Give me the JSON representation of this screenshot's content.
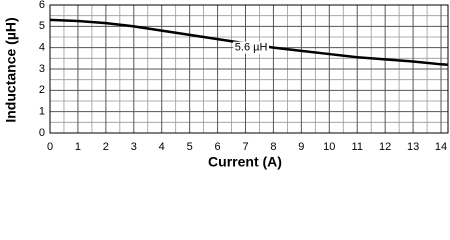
{
  "chart_data": {
    "type": "line",
    "xlabel": "Current (A)",
    "ylabel": "Inductance (µH)",
    "x": [
      0,
      1,
      2,
      3,
      4,
      5,
      6,
      7,
      8,
      9,
      10,
      11,
      12,
      13,
      14,
      14.25
    ],
    "series": [
      {
        "name": "5.6 µH",
        "color": "#000000",
        "values": [
          5.3,
          5.25,
          5.15,
          5.0,
          4.8,
          4.6,
          4.4,
          4.2,
          4.0,
          3.85,
          3.7,
          3.55,
          3.45,
          3.35,
          3.22,
          3.2
        ]
      }
    ],
    "annotations": [
      {
        "text": "5.6 µH",
        "x": 7.2,
        "y": 4.0
      }
    ],
    "xlim": [
      0,
      14.25
    ],
    "xticks": [
      0,
      1,
      2,
      3,
      4,
      5,
      6,
      7,
      8,
      9,
      10,
      11,
      12,
      13,
      14
    ],
    "ylim": [
      0,
      6
    ],
    "yticks": [
      0,
      1,
      2,
      3,
      4,
      5,
      6
    ],
    "grid": true,
    "minor_grid": true
  }
}
